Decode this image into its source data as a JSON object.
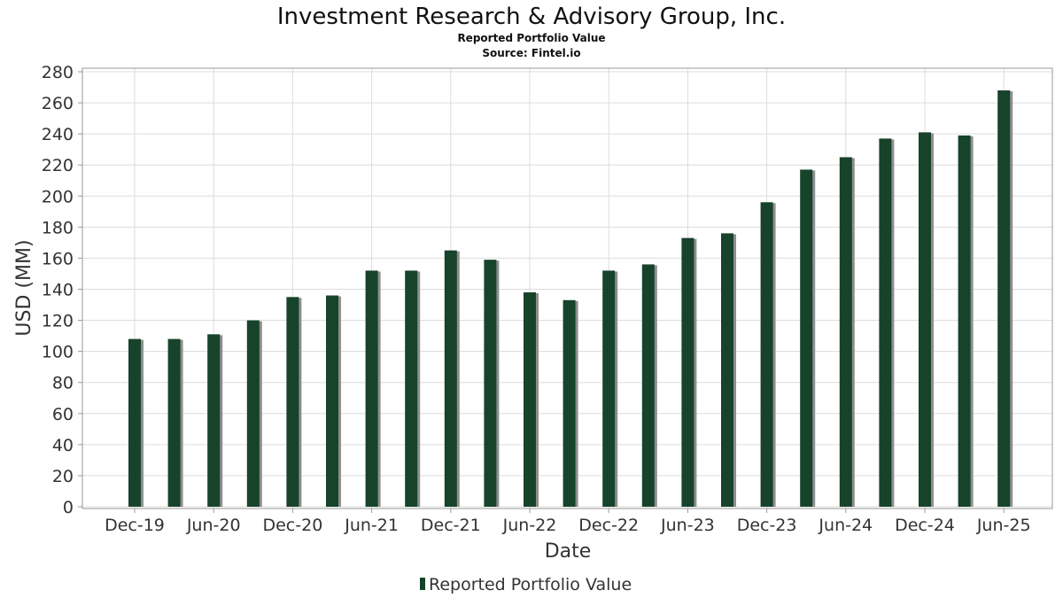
{
  "chart_data": {
    "type": "bar",
    "title": "Investment Research & Advisory Group, Inc.",
    "subtitle": "Reported Portfolio Value",
    "source": "Source: Fintel.io",
    "xlabel": "Date",
    "ylabel": "USD (MM)",
    "ylim": [
      0,
      280
    ],
    "yticks": [
      0,
      20,
      40,
      60,
      80,
      100,
      120,
      140,
      160,
      180,
      200,
      220,
      240,
      260,
      280
    ],
    "grid": true,
    "legend_position": "bottom-center",
    "xtick_labels": [
      {
        "label": "Dec-19",
        "index": 0
      },
      {
        "label": "Jun-20",
        "index": 2
      },
      {
        "label": "Dec-20",
        "index": 4
      },
      {
        "label": "Jun-21",
        "index": 6
      },
      {
        "label": "Dec-21",
        "index": 8
      },
      {
        "label": "Jun-22",
        "index": 10
      },
      {
        "label": "Dec-22",
        "index": 12
      },
      {
        "label": "Jun-23",
        "index": 14
      },
      {
        "label": "Dec-23",
        "index": 16
      },
      {
        "label": "Jun-24",
        "index": 18
      },
      {
        "label": "Dec-24",
        "index": 20
      },
      {
        "label": "Jun-25",
        "index": 22
      }
    ],
    "categories": [
      "2019-12",
      "2020-03",
      "2020-06",
      "2020-09",
      "2020-12",
      "2021-03",
      "2021-06",
      "2021-09",
      "2021-12",
      "2022-03",
      "2022-06",
      "2022-09",
      "2022-12",
      "2023-03",
      "2023-06",
      "2023-09",
      "2023-12",
      "2024-03",
      "2024-06",
      "2024-09",
      "2024-12",
      "2025-03",
      "2025-06"
    ],
    "series": [
      {
        "name": "Reported Portfolio Value",
        "color": "#17432a",
        "values": [
          108,
          108,
          111,
          120,
          135,
          136,
          152,
          152,
          165,
          159,
          138,
          133,
          152,
          156,
          173,
          176,
          196,
          217,
          225,
          237,
          241,
          239,
          268
        ]
      }
    ]
  },
  "colors": {
    "bar": "#17432a",
    "bar_shadow": "#8e8e8e",
    "grid": "#dcdcdc",
    "frame": "#999999"
  }
}
